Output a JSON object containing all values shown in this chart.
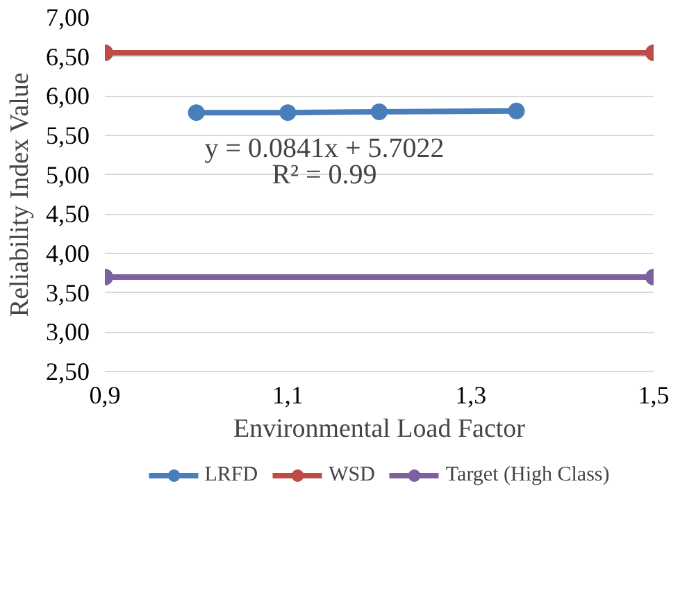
{
  "chart_data": {
    "type": "line",
    "xlabel": "Environmental Load Factor",
    "ylabel": "Reliability Index Value",
    "series": [
      {
        "name": "LRFD",
        "color": "#4a7ebb",
        "x": [
          1.0,
          1.1,
          1.2,
          1.35
        ],
        "values": [
          5.79,
          5.79,
          5.8,
          5.81
        ]
      },
      {
        "name": "WSD",
        "color": "#be4b48",
        "x": [
          0.9,
          1.5
        ],
        "values": [
          6.55,
          6.55
        ]
      },
      {
        "name": "Target (High Class)",
        "color": "#7d60a0",
        "x": [
          0.9,
          1.5
        ],
        "values": [
          3.7,
          3.7
        ]
      }
    ],
    "annotations": [
      "y = 0.0841x + 5.7022",
      "R² = 0.99"
    ],
    "xlim": [
      0.9,
      1.5
    ],
    "ylim": [
      2.5,
      7.0
    ],
    "xticks": [
      {
        "value": 0.9,
        "label": "0,9"
      },
      {
        "value": 1.1,
        "label": "1,1"
      },
      {
        "value": 1.3,
        "label": "1,3"
      },
      {
        "value": 1.5,
        "label": "1,5"
      }
    ],
    "yticks": [
      {
        "value": 2.5,
        "label": "2,50"
      },
      {
        "value": 3.0,
        "label": "3,00"
      },
      {
        "value": 3.5,
        "label": "3,50"
      },
      {
        "value": 4.0,
        "label": "4,00"
      },
      {
        "value": 4.5,
        "label": "4,50"
      },
      {
        "value": 5.0,
        "label": "5,00"
      },
      {
        "value": 5.5,
        "label": "5,50"
      },
      {
        "value": 6.0,
        "label": "6,00"
      },
      {
        "value": 6.5,
        "label": "6,50"
      },
      {
        "value": 7.0,
        "label": "7,00"
      }
    ],
    "grid": "y",
    "legend": "bottom",
    "marker": "circle",
    "line_style": "solid"
  }
}
